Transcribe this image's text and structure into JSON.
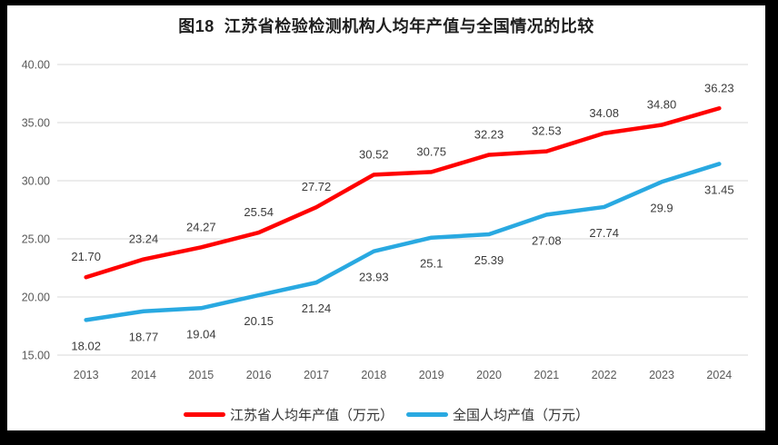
{
  "window": {
    "frame_color": "#000000",
    "panel_color": "#ffffff"
  },
  "chart_data": {
    "type": "line",
    "title": "图18  江苏省检验检测机构人均年产值与全国情况的比较",
    "categories": [
      "2013",
      "2014",
      "2015",
      "2016",
      "2017",
      "2018",
      "2019",
      "2020",
      "2021",
      "2022",
      "2023",
      "2024"
    ],
    "series": [
      {
        "name": "江苏省人均年产值（万元）",
        "color": "#ff0000",
        "label_position": "above",
        "values": [
          21.7,
          23.24,
          24.27,
          25.54,
          27.72,
          30.52,
          30.75,
          32.23,
          32.53,
          34.08,
          34.8,
          36.23
        ],
        "labels": [
          "21.70",
          "23.24",
          "24.27",
          "25.54",
          "27.72",
          "30.52",
          "30.75",
          "32.23",
          "32.53",
          "34.08",
          "34.80",
          "36.23"
        ]
      },
      {
        "name": "全国人均产值（万元）",
        "color": "#29a9e1",
        "label_position": "below",
        "values": [
          18.02,
          18.77,
          19.04,
          20.15,
          21.24,
          23.93,
          25.1,
          25.39,
          27.08,
          27.74,
          29.9,
          31.45
        ],
        "labels": [
          "18.02",
          "18.77",
          "19.04",
          "20.15",
          "21.24",
          "23.93",
          "25.1",
          "25.39",
          "27.08",
          "27.74",
          "29.9",
          "31.45"
        ]
      }
    ],
    "ylim": [
      15,
      40
    ],
    "ytick_values": [
      40,
      35,
      30,
      25,
      20,
      15
    ],
    "ytick_labels": [
      "40.00",
      "35.00",
      "30.00",
      "25.00",
      "20.00",
      "15.00"
    ],
    "grid": true,
    "legend_position": "bottom",
    "grid_color": "#d9d9d9",
    "axis_label_color": "#595959",
    "point_label_color": "#3b3b3b"
  }
}
